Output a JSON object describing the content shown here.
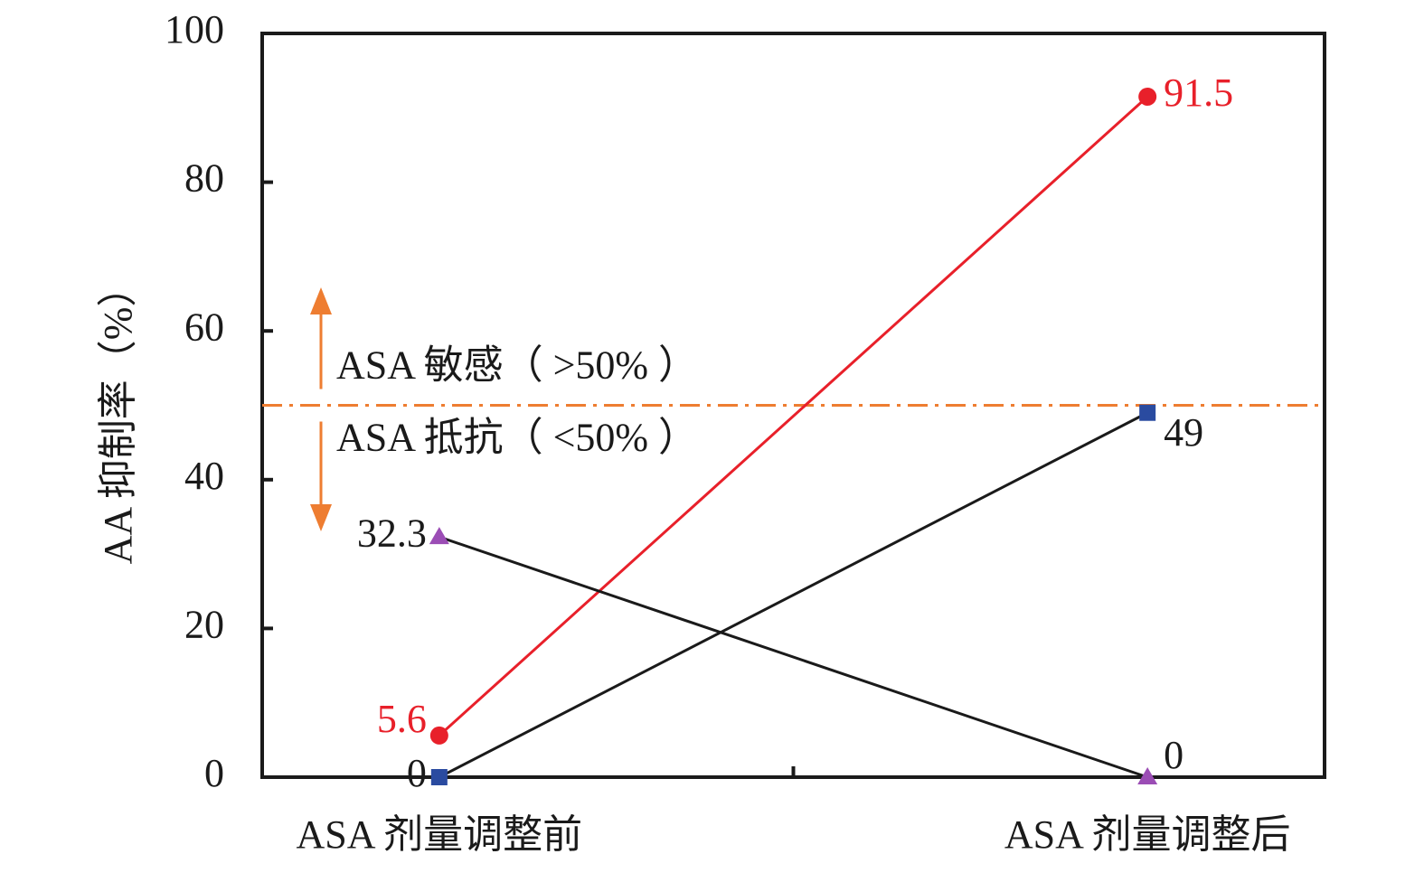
{
  "chart_data": {
    "type": "line",
    "y_label": "AA 抑制率（%）",
    "categories": [
      "ASA 剂量调整前",
      "ASA 剂量调整后"
    ],
    "series": [
      {
        "color": "#e8202a",
        "line_color": "#e8202a",
        "marker": "circle",
        "values": [
          5.6,
          91.5
        ]
      },
      {
        "color": "#2a4ba0",
        "line_color": "#1a1a1a",
        "marker": "square",
        "values": [
          0,
          49
        ]
      },
      {
        "color": "#9b4db5",
        "line_color": "#1a1a1a",
        "marker": "triangle",
        "values": [
          32.3,
          0
        ]
      }
    ],
    "ylim": [
      0,
      100
    ],
    "yticks": [
      0,
      20,
      40,
      60,
      80,
      100
    ],
    "reference_line": {
      "value": 50,
      "color": "#ee7d31"
    },
    "annotations": [
      "ASA 敏感（ >50% ）",
      "ASA 抵抗（ <50% ）"
    ]
  }
}
